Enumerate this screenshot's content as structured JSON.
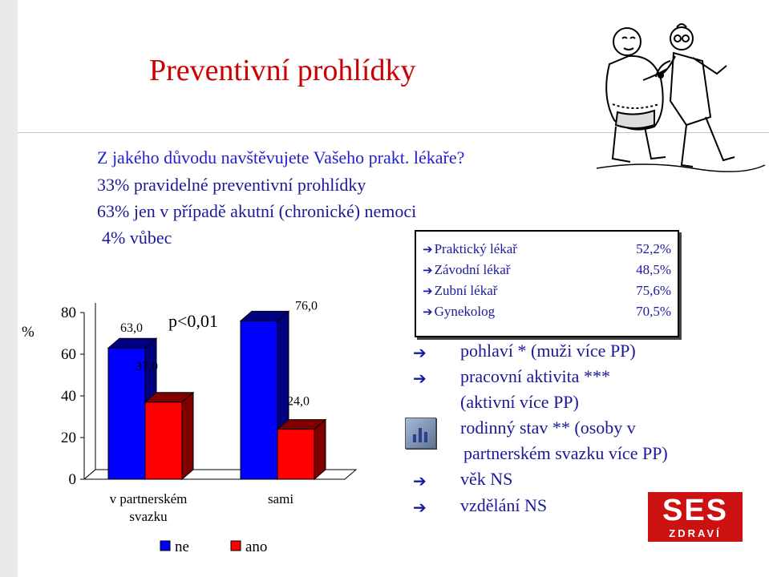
{
  "slide": {
    "title": "Preventivní prohlídky",
    "question": "Z jakého důvodu navštěvujete Vašeho prakt. lékaře?",
    "answers": [
      "33% pravidelné preventivní prohlídky",
      "63% jen v případě akutní (chronické) nemoci",
      "4% vůbec"
    ]
  },
  "info_box": {
    "rows": [
      {
        "label": "Praktický lékař",
        "value": "52,2%"
      },
      {
        "label": "Závodní lékař",
        "value": "48,5%"
      },
      {
        "label": "Zubní lékař",
        "value": "75,6%"
      },
      {
        "label": "Gynekolog",
        "value": "70,5%"
      }
    ]
  },
  "factors": [
    {
      "arrow": true,
      "text": "pohlaví  * (muži více PP)"
    },
    {
      "arrow": true,
      "text": "pracovní aktivita  ***"
    },
    {
      "arrow": false,
      "text": "(aktivní více PP)"
    },
    {
      "arrow": false,
      "text": "rodinný stav   **  (osoby v"
    },
    {
      "arrow": false,
      "text": "partnerském svazku více PP)"
    },
    {
      "arrow": true,
      "text": "věk   NS"
    },
    {
      "arrow": true,
      "text": "vzdělání   NS"
    }
  ],
  "icons": {
    "arrow": "right-arrow-icon",
    "chart": "bar-chart-icon",
    "illustration": "doctor-cartoon",
    "logo": "ses-zdravi-logo"
  },
  "logo": {
    "main": "SES",
    "sub": "ZDRAVÍ"
  },
  "chart_data": {
    "type": "bar",
    "ylabel": "%",
    "ylim": [
      0,
      80
    ],
    "yticks": [
      "0",
      "20",
      "40",
      "60",
      "80"
    ],
    "categories": [
      "v partnerském svazku",
      "sami"
    ],
    "series": [
      {
        "name": "ne",
        "color": "#0000ff",
        "values": [
          63.0,
          76.0
        ],
        "labels": [
          "63,0",
          "76,0"
        ]
      },
      {
        "name": "ano",
        "color": "#ff0000",
        "values": [
          37.0,
          24.0
        ],
        "labels": [
          "37,0",
          "24,0"
        ]
      }
    ],
    "annotation": "p<0,01",
    "legend_position": "bottom",
    "grid": false,
    "style": "3d"
  }
}
